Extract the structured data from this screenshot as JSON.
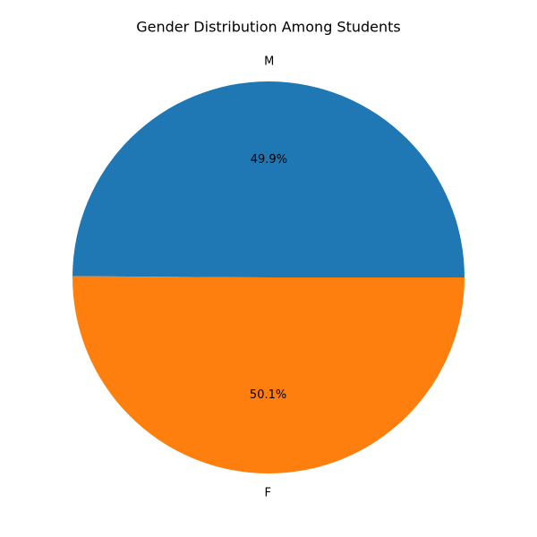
{
  "chart_data": {
    "type": "pie",
    "title": "Gender Distribution Among Students",
    "slices": [
      {
        "label": "M",
        "value": 49.9,
        "pct_label": "49.9%",
        "color": "#1f77b4"
      },
      {
        "label": "F",
        "value": 50.1,
        "pct_label": "50.1%",
        "color": "#ff7f0e"
      }
    ],
    "start_angle_deg": 0,
    "direction": "counterclockwise",
    "legend": "none"
  }
}
